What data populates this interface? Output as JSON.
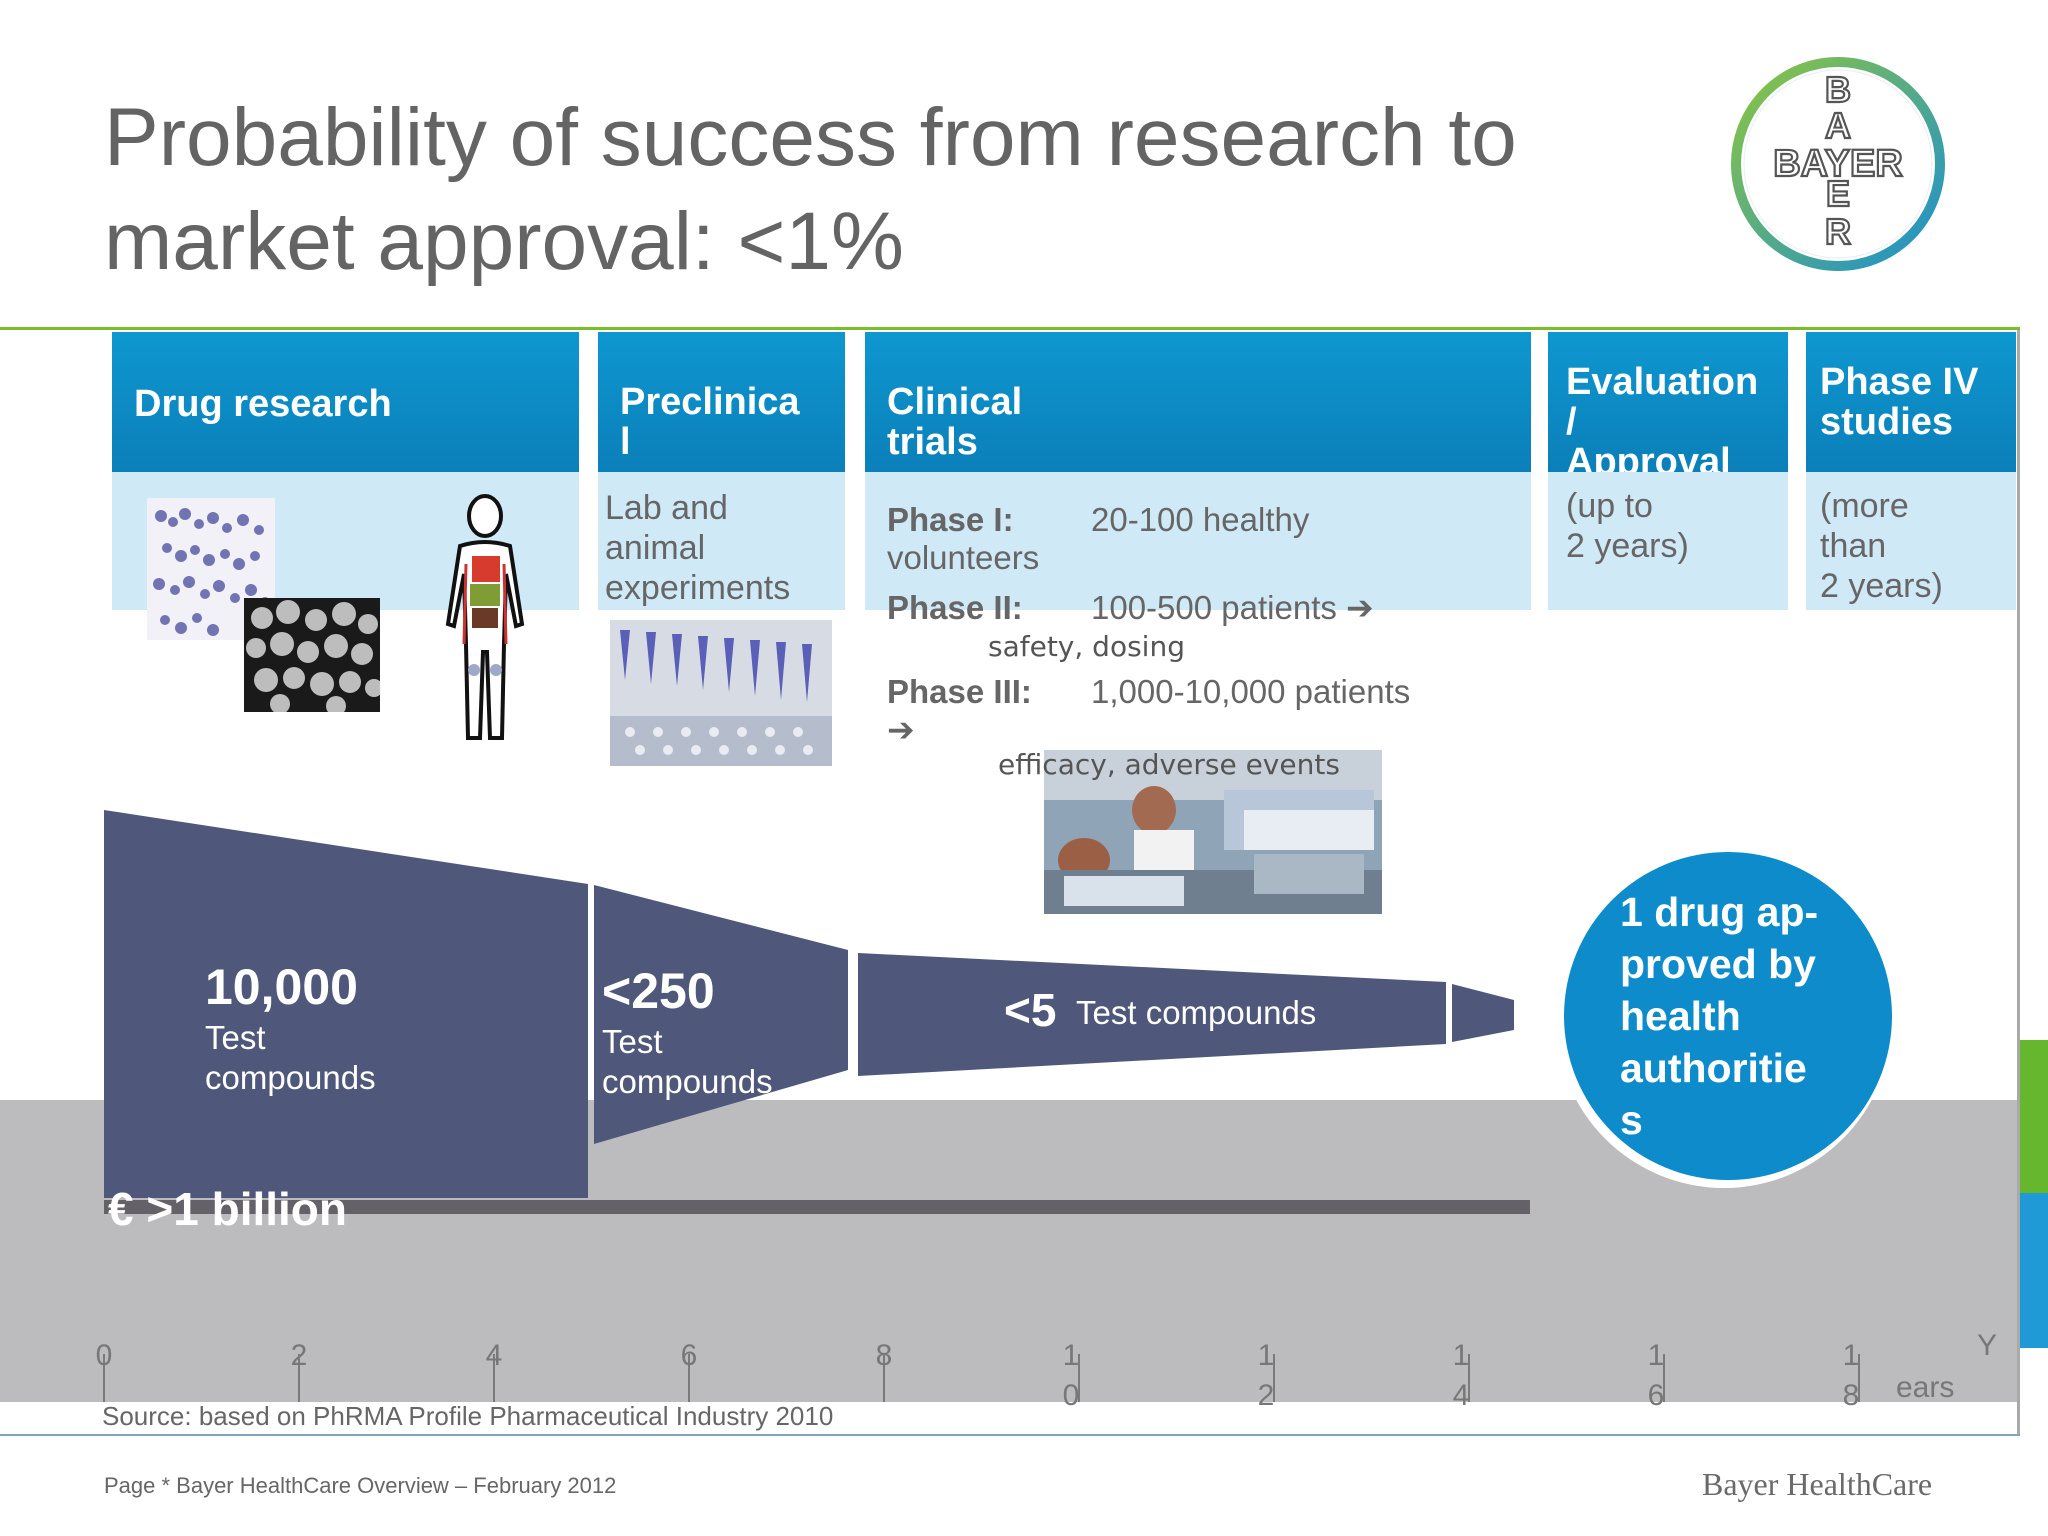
{
  "title": "Probability of success from research to market approval: <1%",
  "logo": {
    "vertical": [
      "B",
      "A",
      "Y",
      "E",
      "R"
    ],
    "horizontal": "BAYER"
  },
  "phases": [
    {
      "label": "Drug research",
      "desc": ""
    },
    {
      "label": "Preclinica\nl",
      "desc": "Lab and\nanimal\nexperiments"
    },
    {
      "label": "Clinical\ntrials",
      "desc": ""
    },
    {
      "label": "Evaluation\n/\nApproval",
      "desc": "(up to\n2 years)"
    },
    {
      "label": "Phase IV\nstudies",
      "desc": "(more\nthan\n2 years)"
    }
  ],
  "clinical": {
    "phase1_label": "Phase I:",
    "phase1_value": "20-100 healthy",
    "phase1_cont": "volunteers",
    "phase2_label": "Phase II:",
    "phase2_value": "100-500 patients ➔",
    "phase2_note": "safety, dosing",
    "phase3_label": "Phase III:",
    "phase3_value": "1,000-10,000 patients",
    "phase3_arrow": "➔",
    "phase3_note": "efficacy, adverse events"
  },
  "funnel": {
    "stage1_count": "10,000",
    "stage1_label": "Test\ncompounds",
    "stage2_count": "<250",
    "stage2_label": "Test\ncompounds",
    "stage3_count": "<5",
    "stage3_label": "Test compounds",
    "cost": "€ >1 billion"
  },
  "approved": "1 drug ap-\nproved by\nhealth\nauthoritie\ns",
  "axis": {
    "ticks": [
      {
        "top": "0",
        "bottom": ""
      },
      {
        "top": "2",
        "bottom": ""
      },
      {
        "top": "4",
        "bottom": ""
      },
      {
        "top": "6",
        "bottom": ""
      },
      {
        "top": "8",
        "bottom": ""
      },
      {
        "top": "1",
        "bottom": "0"
      },
      {
        "top": "1",
        "bottom": "2"
      },
      {
        "top": "1",
        "bottom": "4"
      },
      {
        "top": "1",
        "bottom": "6"
      },
      {
        "top": "1",
        "bottom": "8"
      }
    ],
    "unit_top": "Y",
    "unit_bottom": "ears"
  },
  "source": "Source: based on PhRMA Profile Pharmaceutical Industry 2010",
  "footer": {
    "page": "Page * Bayer HealthCare Overview – February 2012",
    "brand": "Bayer HealthCare"
  },
  "colors": {
    "phase_header": "#0e97d0",
    "phase_body": "#d0e9f6",
    "funnel": "#4f587a",
    "approved": "#0e8bcb",
    "grey_band": "#bcbcbe"
  }
}
